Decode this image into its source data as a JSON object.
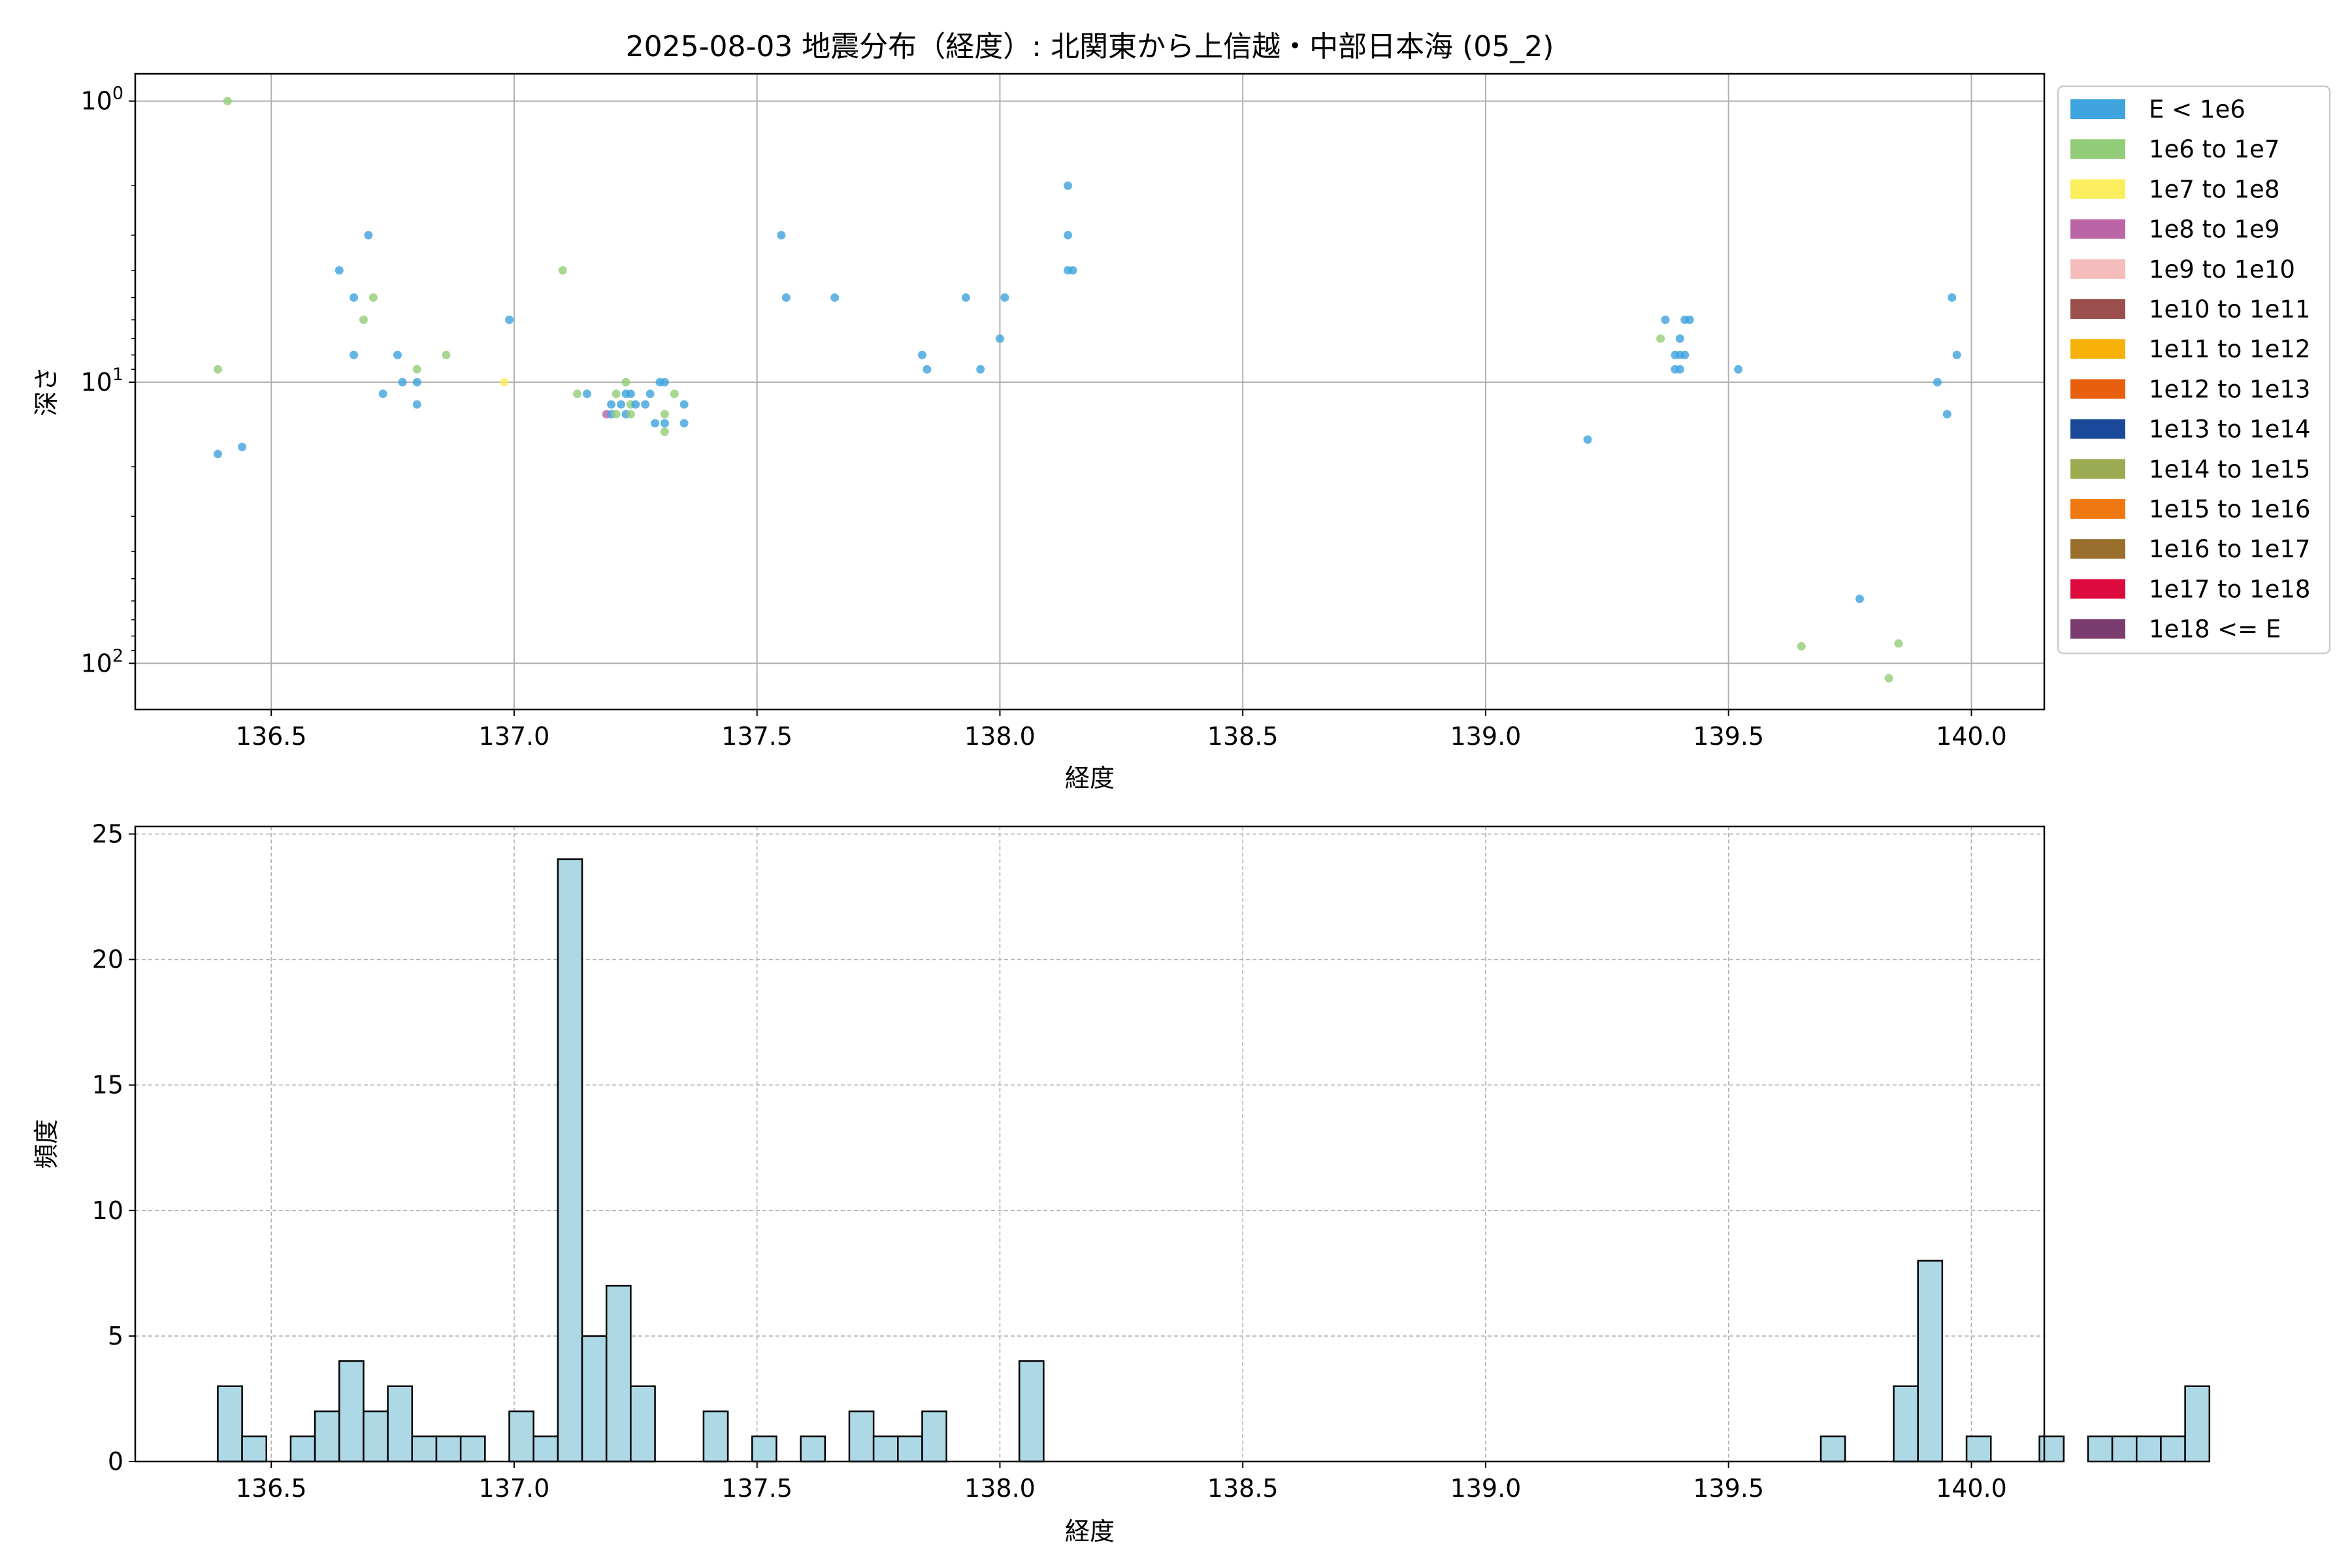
{
  "chart_data": [
    {
      "type": "scatter",
      "title": "2025-08-03 地震分布（経度）: 北関東から上信越・中部日本海 (05_2)",
      "xlabel": "経度",
      "ylabel": "深さ",
      "xlim": [
        136.22,
        140.15
      ],
      "ylim": [
        146,
        0.8
      ],
      "y_scale": "log",
      "y_inverted": true,
      "grid": true,
      "x_ticks": [
        "136.5",
        "137.0",
        "137.5",
        "138.0",
        "138.5",
        "139.0",
        "139.5",
        "140.0"
      ],
      "y_ticks": [
        {
          "base": "10",
          "exp": "0",
          "value": 1
        },
        {
          "base": "10",
          "exp": "1",
          "value": 10
        },
        {
          "base": "10",
          "exp": "2",
          "value": 100
        }
      ],
      "legend_position": "outside-right-top",
      "legend": [
        {
          "label": "E < 1e6",
          "color": "#3fa3dd"
        },
        {
          "label": "1e6 to 1e7",
          "color": "#92cc78"
        },
        {
          "label": "1e7 to 1e8",
          "color": "#fbee5e"
        },
        {
          "label": "1e8 to 1e9",
          "color": "#bb64a6"
        },
        {
          "label": "1e9 to 1e10",
          "color": "#f4bcbb"
        },
        {
          "label": "1e10 to 1e11",
          "color": "#9b4f4c"
        },
        {
          "label": "1e11 to 1e12",
          "color": "#f6b10b"
        },
        {
          "label": "1e12 to 1e13",
          "color": "#e8600e"
        },
        {
          "label": "1e13 to 1e14",
          "color": "#1a4999"
        },
        {
          "label": "1e14 to 1e15",
          "color": "#9bab51"
        },
        {
          "label": "1e15 to 1e16",
          "color": "#ef7811"
        },
        {
          "label": "1e16 to 1e17",
          "color": "#9a6f2d"
        },
        {
          "label": "1e17 to 1e18",
          "color": "#dd0b3d"
        },
        {
          "label": "1e18 <= E",
          "color": "#7a3c6e"
        }
      ],
      "points": [
        {
          "x": 136.41,
          "y": 1.0,
          "c": 1
        },
        {
          "x": 136.39,
          "y": 9.0,
          "c": 1
        },
        {
          "x": 136.39,
          "y": 18.0,
          "c": 0
        },
        {
          "x": 136.44,
          "y": 17.0,
          "c": 0
        },
        {
          "x": 136.64,
          "y": 4.0,
          "c": 0
        },
        {
          "x": 136.67,
          "y": 5.0,
          "c": 0
        },
        {
          "x": 136.67,
          "y": 8.0,
          "c": 0
        },
        {
          "x": 136.69,
          "y": 6.0,
          "c": 1
        },
        {
          "x": 136.7,
          "y": 3.0,
          "c": 0
        },
        {
          "x": 136.71,
          "y": 5.0,
          "c": 1
        },
        {
          "x": 136.73,
          "y": 11.0,
          "c": 0
        },
        {
          "x": 136.76,
          "y": 8.0,
          "c": 0
        },
        {
          "x": 136.77,
          "y": 10.0,
          "c": 0
        },
        {
          "x": 136.8,
          "y": 9.0,
          "c": 1
        },
        {
          "x": 136.8,
          "y": 10.0,
          "c": 0
        },
        {
          "x": 136.8,
          "y": 12.0,
          "c": 0
        },
        {
          "x": 136.86,
          "y": 8.0,
          "c": 1
        },
        {
          "x": 136.98,
          "y": 10.0,
          "c": 2
        },
        {
          "x": 136.99,
          "y": 6.0,
          "c": 0
        },
        {
          "x": 137.1,
          "y": 4.0,
          "c": 1
        },
        {
          "x": 137.13,
          "y": 11.0,
          "c": 1
        },
        {
          "x": 137.15,
          "y": 11.0,
          "c": 0
        },
        {
          "x": 137.19,
          "y": 13.0,
          "c": 3
        },
        {
          "x": 137.2,
          "y": 13.0,
          "c": 0
        },
        {
          "x": 137.2,
          "y": 12.0,
          "c": 0
        },
        {
          "x": 137.21,
          "y": 11.0,
          "c": 1
        },
        {
          "x": 137.21,
          "y": 13.0,
          "c": 1
        },
        {
          "x": 137.22,
          "y": 12.0,
          "c": 0
        },
        {
          "x": 137.23,
          "y": 11.0,
          "c": 0
        },
        {
          "x": 137.23,
          "y": 10.0,
          "c": 1
        },
        {
          "x": 137.23,
          "y": 13.0,
          "c": 0
        },
        {
          "x": 137.24,
          "y": 11.0,
          "c": 0
        },
        {
          "x": 137.24,
          "y": 12.0,
          "c": 1
        },
        {
          "x": 137.24,
          "y": 13.0,
          "c": 1
        },
        {
          "x": 137.25,
          "y": 12.0,
          "c": 0
        },
        {
          "x": 137.27,
          "y": 12.0,
          "c": 0
        },
        {
          "x": 137.28,
          "y": 11.0,
          "c": 0
        },
        {
          "x": 137.29,
          "y": 14.0,
          "c": 0
        },
        {
          "x": 137.3,
          "y": 10.0,
          "c": 0
        },
        {
          "x": 137.31,
          "y": 10.0,
          "c": 0
        },
        {
          "x": 137.31,
          "y": 14.0,
          "c": 0
        },
        {
          "x": 137.31,
          "y": 15.0,
          "c": 1
        },
        {
          "x": 137.31,
          "y": 13.0,
          "c": 1
        },
        {
          "x": 137.33,
          "y": 11.0,
          "c": 1
        },
        {
          "x": 137.35,
          "y": 12.0,
          "c": 0
        },
        {
          "x": 137.35,
          "y": 14.0,
          "c": 0
        },
        {
          "x": 137.55,
          "y": 3.0,
          "c": 0
        },
        {
          "x": 137.56,
          "y": 5.0,
          "c": 0
        },
        {
          "x": 137.66,
          "y": 5.0,
          "c": 0
        },
        {
          "x": 137.84,
          "y": 8.0,
          "c": 0
        },
        {
          "x": 137.85,
          "y": 9.0,
          "c": 0
        },
        {
          "x": 137.93,
          "y": 5.0,
          "c": 0
        },
        {
          "x": 137.96,
          "y": 9.0,
          "c": 0
        },
        {
          "x": 138.0,
          "y": 7.0,
          "c": 0
        },
        {
          "x": 138.01,
          "y": 5.0,
          "c": 0
        },
        {
          "x": 138.14,
          "y": 2.0,
          "c": 0
        },
        {
          "x": 138.14,
          "y": 3.0,
          "c": 0
        },
        {
          "x": 138.14,
          "y": 4.0,
          "c": 0
        },
        {
          "x": 138.15,
          "y": 4.0,
          "c": 0
        },
        {
          "x": 139.21,
          "y": 16.0,
          "c": 0
        },
        {
          "x": 139.36,
          "y": 7.0,
          "c": 1
        },
        {
          "x": 139.37,
          "y": 6.0,
          "c": 0
        },
        {
          "x": 139.39,
          "y": 8.0,
          "c": 0
        },
        {
          "x": 139.39,
          "y": 9.0,
          "c": 0
        },
        {
          "x": 139.4,
          "y": 7.0,
          "c": 0
        },
        {
          "x": 139.4,
          "y": 8.0,
          "c": 0
        },
        {
          "x": 139.4,
          "y": 9.0,
          "c": 0
        },
        {
          "x": 139.41,
          "y": 6.0,
          "c": 0
        },
        {
          "x": 139.41,
          "y": 8.0,
          "c": 0
        },
        {
          "x": 139.42,
          "y": 6.0,
          "c": 0
        },
        {
          "x": 139.52,
          "y": 9.0,
          "c": 0
        },
        {
          "x": 139.65,
          "y": 87.0,
          "c": 1
        },
        {
          "x": 139.77,
          "y": 59.0,
          "c": 0
        },
        {
          "x": 139.83,
          "y": 113.0,
          "c": 1
        },
        {
          "x": 139.85,
          "y": 85.0,
          "c": 1
        },
        {
          "x": 139.93,
          "y": 10.0,
          "c": 0
        },
        {
          "x": 139.95,
          "y": 13.0,
          "c": 0
        },
        {
          "x": 139.96,
          "y": 5.0,
          "c": 0
        },
        {
          "x": 139.97,
          "y": 8.0,
          "c": 0
        }
      ]
    },
    {
      "type": "bar",
      "title": "",
      "xlabel": "経度",
      "ylabel": "頻度",
      "xlim": [
        136.22,
        140.15
      ],
      "ylim": [
        0,
        25.3
      ],
      "grid": true,
      "grid_style": "dashed",
      "x_ticks": [
        "136.5",
        "137.0",
        "137.5",
        "138.0",
        "138.5",
        "139.0",
        "139.5",
        "140.0"
      ],
      "y_ticks": [
        "0",
        "5",
        "10",
        "15",
        "20",
        "25"
      ],
      "bar_color": "#add8e6",
      "bin_start": 136.39,
      "bin_width": 0.05,
      "counts": [
        3,
        1,
        0,
        1,
        2,
        4,
        2,
        3,
        1,
        1,
        1,
        0,
        2,
        1,
        24,
        5,
        7,
        3,
        0,
        0,
        2,
        0,
        1,
        0,
        1,
        0,
        2,
        1,
        1,
        2,
        0,
        0,
        0,
        4,
        0,
        0,
        0,
        0,
        0,
        0,
        0,
        0,
        0,
        0,
        0,
        0,
        0,
        0,
        0,
        0,
        0,
        0,
        0,
        0,
        0,
        0,
        0,
        0,
        0,
        0,
        0,
        0,
        0,
        0,
        0,
        0,
        1,
        0,
        0,
        3,
        8,
        0,
        1,
        0,
        0,
        1,
        0,
        1,
        1,
        1,
        1,
        3
      ]
    }
  ]
}
